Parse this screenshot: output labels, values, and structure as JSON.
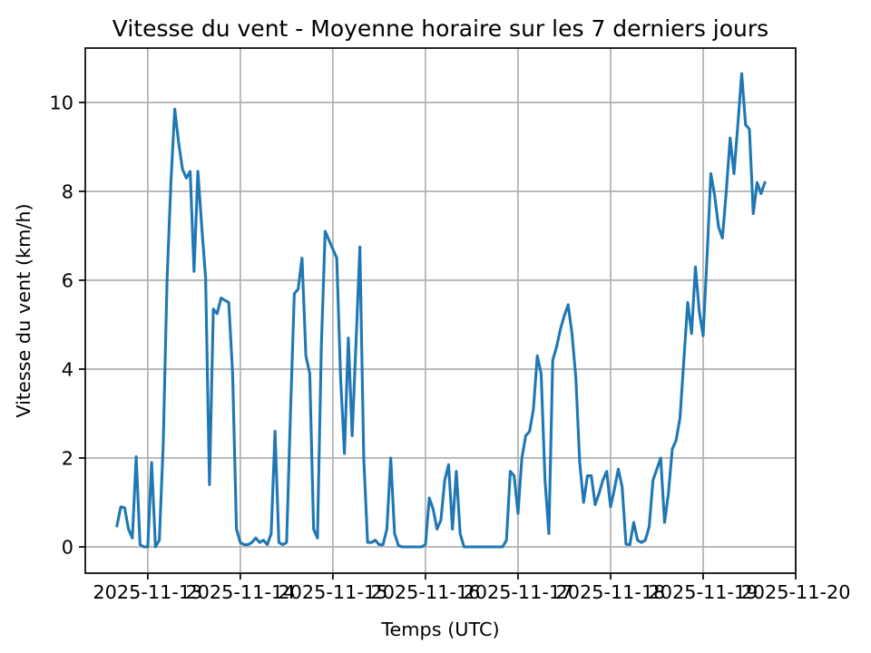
{
  "figure": {
    "title": "Vitesse du vent - Moyenne horaire sur les 7 derniers jours",
    "xlabel": "Temps (UTC)",
    "ylabel": "Vitesse du vent (km/h)"
  },
  "chart_data": {
    "type": "line",
    "title": "Vitesse du vent - Moyenne horaire sur les 7 derniers jours",
    "xlabel": "Temps (UTC)",
    "ylabel": "Vitesse du vent (km/h)",
    "legend": "none",
    "grid": true,
    "line_color": "#1f77b4",
    "grid_color": "#b0b0b0",
    "x_start": "2025-11-12 16:00",
    "x_step_hours": 1,
    "x_end": "2025-11-19 16:00",
    "x_tick_labels": [
      "2025-11-13",
      "2025-11-14",
      "2025-11-15",
      "2025-11-16",
      "2025-11-17",
      "2025-11-18",
      "2025-11-19",
      "2025-11-20"
    ],
    "x_tick_hours_from_start": [
      8,
      32,
      56,
      80,
      104,
      128,
      152,
      176
    ],
    "y_ticks": [
      0,
      2,
      4,
      6,
      8,
      10
    ],
    "ylim": [
      -0.59,
      11.22
    ],
    "xlim_hours_from_start": [
      -8.2,
      176.0
    ],
    "values": [
      0.47,
      0.9,
      0.88,
      0.4,
      0.2,
      2.03,
      0.05,
      0.0,
      0.0,
      1.9,
      0.0,
      0.15,
      2.3,
      6.0,
      8.2,
      9.85,
      9.1,
      8.5,
      8.3,
      8.45,
      6.2,
      8.45,
      7.2,
      6.05,
      1.4,
      5.35,
      5.25,
      5.6,
      5.55,
      5.5,
      3.9,
      0.4,
      0.1,
      0.05,
      0.05,
      0.1,
      0.2,
      0.1,
      0.15,
      0.05,
      0.3,
      2.6,
      0.1,
      0.05,
      0.1,
      3.0,
      5.7,
      5.8,
      6.5,
      4.3,
      3.9,
      0.4,
      0.2,
      4.5,
      7.1,
      6.9,
      6.7,
      6.5,
      3.8,
      2.1,
      4.7,
      2.5,
      4.6,
      6.75,
      2.0,
      0.1,
      0.1,
      0.15,
      0.05,
      0.05,
      0.4,
      2.0,
      0.3,
      0.03,
      0.0,
      0.0,
      0.0,
      0.0,
      0.0,
      0.0,
      0.05,
      1.1,
      0.85,
      0.4,
      0.6,
      1.5,
      1.85,
      0.4,
      1.7,
      0.3,
      0.0,
      0.0,
      0.0,
      0.0,
      0.0,
      0.0,
      0.0,
      0.0,
      0.0,
      0.0,
      0.0,
      0.15,
      1.7,
      1.6,
      0.75,
      2.0,
      2.5,
      2.6,
      3.1,
      4.3,
      3.9,
      1.5,
      0.3,
      4.2,
      4.5,
      4.9,
      5.2,
      5.45,
      4.8,
      3.8,
      1.9,
      1.0,
      1.6,
      1.6,
      0.95,
      1.2,
      1.5,
      1.7,
      0.9,
      1.3,
      1.75,
      1.35,
      0.06,
      0.05,
      0.55,
      0.15,
      0.1,
      0.15,
      0.45,
      1.5,
      1.75,
      2.0,
      0.55,
      1.2,
      2.2,
      2.4,
      2.9,
      4.2,
      5.5,
      4.8,
      6.3,
      5.3,
      4.75,
      6.5,
      8.4,
      7.9,
      7.2,
      6.95,
      8.0,
      9.2,
      8.4,
      9.5,
      10.65,
      9.5,
      9.4,
      7.5,
      8.2,
      7.95,
      8.2
    ]
  }
}
